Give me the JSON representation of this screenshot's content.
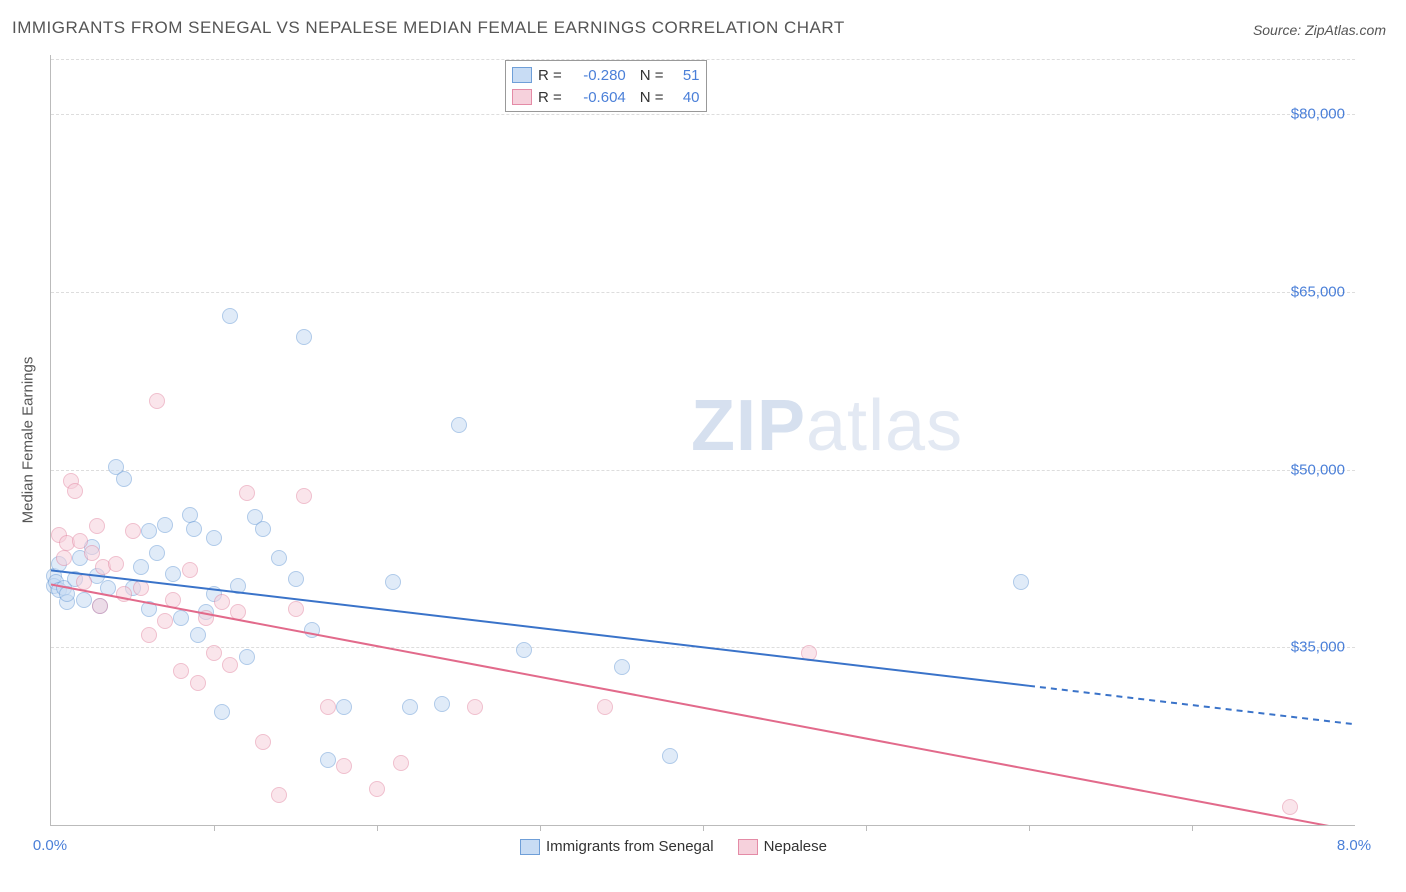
{
  "title": "IMMIGRANTS FROM SENEGAL VS NEPALESE MEDIAN FEMALE EARNINGS CORRELATION CHART",
  "source_label": "Source:",
  "source_value": "ZipAtlas.com",
  "watermark_bold": "ZIP",
  "watermark_light": "atlas",
  "chart": {
    "type": "scatter",
    "background_color": "#ffffff",
    "grid_color": "#dddddd",
    "axis_color": "#bbbbbb",
    "ylabel": "Median Female Earnings",
    "ylabel_fontsize": 15,
    "xlim": [
      0.0,
      8.0
    ],
    "ylim": [
      20000,
      85000
    ],
    "yticks": [
      {
        "value": 35000,
        "label": "$35,000"
      },
      {
        "value": 50000,
        "label": "$50,000"
      },
      {
        "value": 65000,
        "label": "$65,000"
      },
      {
        "value": 80000,
        "label": "$80,000"
      }
    ],
    "xticks_minor": [
      1,
      2,
      3,
      4,
      5,
      6,
      7
    ],
    "xtick_labels": [
      {
        "value": 0.0,
        "label": "0.0%"
      },
      {
        "value": 8.0,
        "label": "8.0%"
      }
    ],
    "marker_radius": 8,
    "marker_border_width": 1.2,
    "series": [
      {
        "name": "Immigrants from Senegal",
        "fill": "#c8dcf4",
        "stroke": "#6f9fd8",
        "fill_opacity": 0.55,
        "R": "-0.280",
        "N": "51",
        "trend": {
          "x1": 0.0,
          "y1": 41500,
          "x2": 8.0,
          "y2": 28500,
          "solid_until_x": 6.0,
          "color": "#3a73c9",
          "width": 2
        },
        "points": [
          [
            0.02,
            41000
          ],
          [
            0.02,
            40200
          ],
          [
            0.03,
            40500
          ],
          [
            0.05,
            39800
          ],
          [
            0.05,
            42000
          ],
          [
            0.08,
            40000
          ],
          [
            0.1,
            38800
          ],
          [
            0.1,
            39500
          ],
          [
            0.15,
            40800
          ],
          [
            0.18,
            42500
          ],
          [
            0.2,
            39000
          ],
          [
            0.25,
            43500
          ],
          [
            0.28,
            41000
          ],
          [
            0.3,
            38500
          ],
          [
            0.35,
            40000
          ],
          [
            0.4,
            50200
          ],
          [
            0.45,
            49200
          ],
          [
            0.5,
            40000
          ],
          [
            0.55,
            41800
          ],
          [
            0.6,
            44800
          ],
          [
            0.65,
            43000
          ],
          [
            0.7,
            45300
          ],
          [
            0.75,
            41200
          ],
          [
            0.8,
            37500
          ],
          [
            0.85,
            46200
          ],
          [
            0.88,
            45000
          ],
          [
            0.9,
            36000
          ],
          [
            0.95,
            38000
          ],
          [
            1.0,
            39500
          ],
          [
            1.0,
            44200
          ],
          [
            1.05,
            29500
          ],
          [
            1.1,
            63000
          ],
          [
            1.15,
            40200
          ],
          [
            1.2,
            34200
          ],
          [
            1.25,
            46000
          ],
          [
            1.3,
            45000
          ],
          [
            1.4,
            42500
          ],
          [
            1.5,
            40800
          ],
          [
            1.55,
            61200
          ],
          [
            1.6,
            36500
          ],
          [
            1.7,
            25500
          ],
          [
            1.8,
            30000
          ],
          [
            2.1,
            40500
          ],
          [
            2.2,
            30000
          ],
          [
            2.4,
            30200
          ],
          [
            2.5,
            53800
          ],
          [
            2.9,
            34800
          ],
          [
            3.5,
            33300
          ],
          [
            3.8,
            25800
          ],
          [
            5.95,
            40500
          ],
          [
            0.6,
            38200
          ]
        ]
      },
      {
        "name": "Nepalese",
        "fill": "#f6d1dc",
        "stroke": "#e48ba6",
        "fill_opacity": 0.55,
        "R": "-0.604",
        "N": "40",
        "trend": {
          "x1": 0.0,
          "y1": 40300,
          "x2": 8.0,
          "y2": 19500,
          "solid_until_x": 8.0,
          "color": "#e26a8b",
          "width": 2
        },
        "points": [
          [
            0.05,
            44500
          ],
          [
            0.08,
            42500
          ],
          [
            0.1,
            43800
          ],
          [
            0.12,
            49000
          ],
          [
            0.15,
            48200
          ],
          [
            0.18,
            44000
          ],
          [
            0.2,
            40500
          ],
          [
            0.25,
            43000
          ],
          [
            0.28,
            45200
          ],
          [
            0.3,
            38500
          ],
          [
            0.32,
            41800
          ],
          [
            0.4,
            42000
          ],
          [
            0.45,
            39500
          ],
          [
            0.5,
            44800
          ],
          [
            0.55,
            40000
          ],
          [
            0.6,
            36000
          ],
          [
            0.65,
            55800
          ],
          [
            0.7,
            37200
          ],
          [
            0.75,
            39000
          ],
          [
            0.8,
            33000
          ],
          [
            0.85,
            41500
          ],
          [
            0.9,
            32000
          ],
          [
            0.95,
            37500
          ],
          [
            1.0,
            34500
          ],
          [
            1.05,
            38800
          ],
          [
            1.1,
            33500
          ],
          [
            1.15,
            38000
          ],
          [
            1.2,
            48000
          ],
          [
            1.3,
            27000
          ],
          [
            1.4,
            22500
          ],
          [
            1.5,
            38200
          ],
          [
            1.55,
            47800
          ],
          [
            1.7,
            30000
          ],
          [
            1.8,
            25000
          ],
          [
            2.0,
            23000
          ],
          [
            2.15,
            25200
          ],
          [
            2.6,
            30000
          ],
          [
            3.4,
            30000
          ],
          [
            4.65,
            34500
          ],
          [
            7.6,
            21500
          ]
        ]
      }
    ]
  },
  "legend_top": {
    "r_label": "R =",
    "n_label": "N ="
  },
  "legend_bottom": {
    "series1": "Immigrants from Senegal",
    "series2": "Nepalese"
  }
}
